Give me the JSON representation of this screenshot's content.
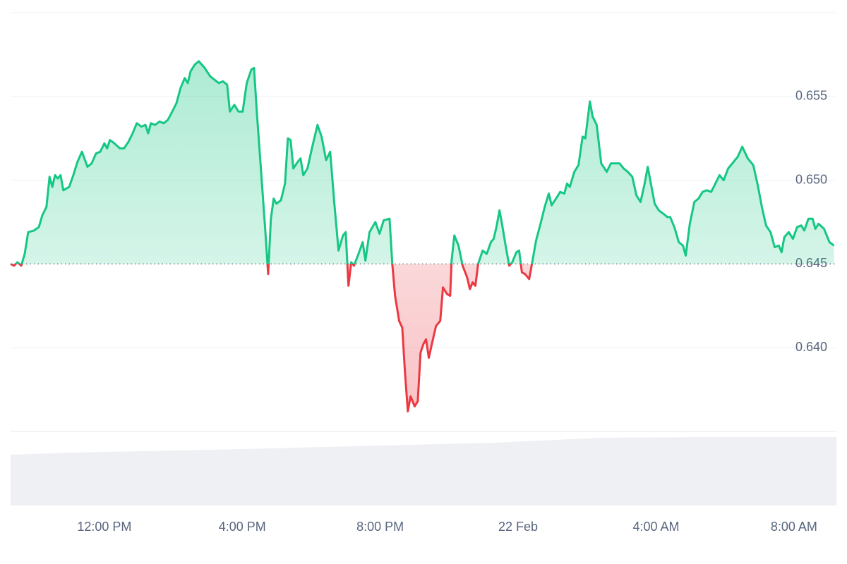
{
  "chart_data": {
    "type": "line",
    "x": [
      9.28,
      9.38,
      9.48,
      9.59,
      9.69,
      9.79,
      9.96,
      10.1,
      10.2,
      10.32,
      10.41,
      10.49,
      10.57,
      10.65,
      10.73,
      10.81,
      10.98,
      11.1,
      11.22,
      11.35,
      11.51,
      11.63,
      11.76,
      11.88,
      12.0,
      12.08,
      12.16,
      12.29,
      12.45,
      12.57,
      12.7,
      12.82,
      12.94,
      13.07,
      13.19,
      13.27,
      13.35,
      13.47,
      13.6,
      13.72,
      13.84,
      13.97,
      14.09,
      14.21,
      14.33,
      14.42,
      14.5,
      14.62,
      14.74,
      14.91,
      15.07,
      15.19,
      15.32,
      15.44,
      15.56,
      15.64,
      15.77,
      15.89,
      16.01,
      16.13,
      16.26,
      16.34,
      16.42,
      16.54,
      16.67,
      16.75,
      16.83,
      16.91,
      16.99,
      17.12,
      17.24,
      17.32,
      17.4,
      17.48,
      17.61,
      17.69,
      17.77,
      17.89,
      18.02,
      18.18,
      18.3,
      18.43,
      18.55,
      18.67,
      18.79,
      18.92,
      19.0,
      19.08,
      19.16,
      19.24,
      19.37,
      19.49,
      19.57,
      19.69,
      19.86,
      19.98,
      20.1,
      20.27,
      20.35,
      20.43,
      20.55,
      20.64,
      20.72,
      20.8,
      20.88,
      21.0,
      21.09,
      21.17,
      21.25,
      21.33,
      21.41,
      21.54,
      21.62,
      21.74,
      21.82,
      21.94,
      22.03,
      22.07,
      22.15,
      22.27,
      22.39,
      22.52,
      22.6,
      22.68,
      22.76,
      22.84,
      22.97,
      23.09,
      23.21,
      23.29,
      23.37,
      23.46,
      23.54,
      23.62,
      23.74,
      23.83,
      23.95,
      24.03,
      24.11,
      24.2,
      24.32,
      24.4,
      24.52,
      24.65,
      24.77,
      24.89,
      24.97,
      25.1,
      25.22,
      25.34,
      25.42,
      25.5,
      25.63,
      25.75,
      25.87,
      25.95,
      26.08,
      26.16,
      26.28,
      26.41,
      26.57,
      26.69,
      26.81,
      26.94,
      27.06,
      27.18,
      27.31,
      27.43,
      27.55,
      27.67,
      27.76,
      27.84,
      27.96,
      28.08,
      28.21,
      28.33,
      28.41,
      28.53,
      28.66,
      28.78,
      28.86,
      28.98,
      29.11,
      29.23,
      29.35,
      29.47,
      29.6,
      29.72,
      29.84,
      29.96,
      30.09,
      30.25,
      30.37,
      30.5,
      30.66,
      30.82,
      30.95,
      31.07,
      31.19,
      31.32,
      31.44,
      31.56,
      31.64,
      31.72,
      31.85,
      31.97,
      32.09,
      32.21,
      32.3,
      32.42,
      32.54,
      32.62,
      32.71,
      32.87,
      33.03,
      33.16
    ],
    "values": [
      0.645,
      0.6449,
      0.6451,
      0.6449,
      0.6456,
      0.6469,
      0.647,
      0.6472,
      0.6479,
      0.6484,
      0.6502,
      0.6496,
      0.6503,
      0.6501,
      0.6503,
      0.6494,
      0.6496,
      0.6503,
      0.6511,
      0.6517,
      0.6508,
      0.651,
      0.6516,
      0.6517,
      0.6522,
      0.6519,
      0.6524,
      0.6522,
      0.6519,
      0.6519,
      0.6523,
      0.6528,
      0.6534,
      0.6532,
      0.6533,
      0.6528,
      0.6534,
      0.6533,
      0.6535,
      0.6534,
      0.6536,
      0.6541,
      0.6546,
      0.6555,
      0.6561,
      0.6558,
      0.6565,
      0.6569,
      0.6571,
      0.6567,
      0.6562,
      0.656,
      0.6558,
      0.6559,
      0.6557,
      0.6541,
      0.6545,
      0.6541,
      0.6541,
      0.6558,
      0.6566,
      0.6567,
      0.6541,
      0.6507,
      0.6469,
      0.6444,
      0.6477,
      0.6489,
      0.6486,
      0.6488,
      0.6498,
      0.6525,
      0.6524,
      0.6507,
      0.6511,
      0.6513,
      0.6503,
      0.6507,
      0.6519,
      0.6533,
      0.6526,
      0.6512,
      0.6517,
      0.6486,
      0.6458,
      0.6467,
      0.6469,
      0.6437,
      0.6451,
      0.6449,
      0.6456,
      0.6463,
      0.6452,
      0.6469,
      0.6475,
      0.6468,
      0.6476,
      0.6477,
      0.645,
      0.6431,
      0.6416,
      0.6412,
      0.6385,
      0.6362,
      0.6371,
      0.6365,
      0.6368,
      0.6397,
      0.6402,
      0.6405,
      0.6394,
      0.6406,
      0.6413,
      0.6416,
      0.6436,
      0.6432,
      0.6431,
      0.6452,
      0.6467,
      0.6461,
      0.6449,
      0.6442,
      0.6435,
      0.6439,
      0.6437,
      0.645,
      0.6458,
      0.6456,
      0.6463,
      0.6465,
      0.6472,
      0.6482,
      0.6473,
      0.6463,
      0.6449,
      0.6451,
      0.6457,
      0.6458,
      0.6445,
      0.6444,
      0.6441,
      0.645,
      0.6464,
      0.6474,
      0.6484,
      0.6492,
      0.6485,
      0.6489,
      0.6493,
      0.6492,
      0.6498,
      0.6496,
      0.6505,
      0.6509,
      0.6526,
      0.6525,
      0.6547,
      0.6538,
      0.6533,
      0.651,
      0.6505,
      0.651,
      0.651,
      0.651,
      0.6507,
      0.6505,
      0.6502,
      0.6491,
      0.6487,
      0.6498,
      0.6508,
      0.6499,
      0.6486,
      0.6482,
      0.648,
      0.6478,
      0.6478,
      0.6472,
      0.6463,
      0.6461,
      0.6455,
      0.6474,
      0.6487,
      0.6489,
      0.6493,
      0.6494,
      0.6493,
      0.6498,
      0.6503,
      0.65,
      0.6507,
      0.6511,
      0.6514,
      0.652,
      0.6513,
      0.6509,
      0.6497,
      0.6484,
      0.6473,
      0.6469,
      0.646,
      0.6461,
      0.6457,
      0.6466,
      0.6469,
      0.6465,
      0.6472,
      0.6473,
      0.647,
      0.6477,
      0.6477,
      0.6471,
      0.6474,
      0.6471,
      0.6463,
      0.6461
    ],
    "baseline": 0.645,
    "colors": {
      "above": "#16c784",
      "below": "#ea3943"
    },
    "xlim": [
      9.28,
      33.19
    ],
    "xticks": [
      {
        "value": 12,
        "label": "12:00 PM"
      },
      {
        "value": 16,
        "label": "4:00 PM"
      },
      {
        "value": 20,
        "label": "8:00 PM"
      },
      {
        "value": 24,
        "label": "22 Feb"
      },
      {
        "value": 28,
        "label": "4:00 AM"
      },
      {
        "value": 32,
        "label": "8:00 AM"
      }
    ],
    "ylim": [
      0.635,
      0.66
    ],
    "yticks": [
      {
        "value": 0.64,
        "label": "0.640"
      },
      0.645,
      {
        "value": 0.65,
        "label": "0.650"
      },
      0.655
    ],
    "grid": true
  }
}
